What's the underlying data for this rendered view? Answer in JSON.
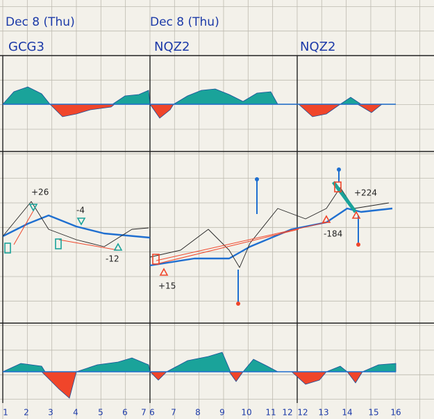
{
  "panels": [
    {
      "date": "Dec 8 (Thu)",
      "symbol": "GCG3"
    },
    {
      "date": "Dec 8 (Thu)",
      "symbol": "NQZ2"
    },
    {
      "symbol": "NQZ2"
    }
  ],
  "annotations": [
    "+26",
    "-4",
    "-12",
    "+15",
    "-184",
    "+224"
  ],
  "x_labels": [
    1,
    2,
    3,
    4,
    5,
    6,
    7,
    6,
    7,
    8,
    9,
    10,
    11,
    12,
    12,
    13,
    14,
    15,
    16
  ]
}
